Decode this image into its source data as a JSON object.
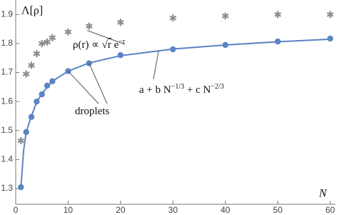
{
  "chart_data": {
    "type": "line",
    "y_label": "Λ[ρ]",
    "x_label": "N",
    "xlim": [
      0,
      61
    ],
    "ylim": [
      1.246,
      1.95
    ],
    "xticks": [
      0,
      10,
      20,
      30,
      40,
      50,
      60
    ],
    "yticks": [
      1.3,
      1.4,
      1.5,
      1.6,
      1.7,
      1.8,
      1.9
    ],
    "series": [
      {
        "color": "#5b84c4",
        "marker": "none",
        "x": [
          1,
          1.5,
          2,
          3,
          4,
          5,
          7,
          10,
          14,
          20,
          30,
          40,
          50,
          60
        ],
        "values": [
          1.305,
          1.43,
          1.495,
          1.55,
          1.598,
          1.628,
          1.67,
          1.705,
          1.733,
          1.758,
          1.781,
          1.795,
          1.806,
          1.815
        ]
      },
      {
        "color": "#5b84c4",
        "marker": "circle",
        "x": [
          1,
          2,
          3,
          4,
          5,
          6,
          7,
          10,
          14,
          20,
          30,
          40,
          50,
          60
        ],
        "values": [
          1.305,
          1.495,
          1.547,
          1.6,
          1.625,
          1.655,
          1.67,
          1.705,
          1.732,
          1.76,
          1.78,
          1.795,
          1.807,
          1.817
        ]
      },
      {
        "color": "#8c8c8c",
        "marker": "asterisk",
        "x": [
          1,
          2,
          3,
          4,
          5,
          6,
          7,
          10,
          14,
          20,
          30,
          40,
          50,
          60
        ],
        "values": [
          1.465,
          1.695,
          1.725,
          1.765,
          1.8,
          1.805,
          1.82,
          1.84,
          1.86,
          1.873,
          1.888,
          1.895,
          1.9,
          1.9
        ]
      }
    ],
    "annotations": [
      {
        "parts": [
          {
            "text": "ρ(r) ∝ √"
          },
          {
            "over": "r"
          },
          {
            "text": " e"
          },
          {
            "sup": "−r"
          }
        ]
      },
      {
        "parts": [
          {
            "text": "a + b N"
          },
          {
            "sup": "−1/3"
          },
          {
            "text": " + c N"
          },
          {
            "sup": "−2/3"
          }
        ]
      },
      {
        "parts": [
          {
            "text": "droplets"
          }
        ]
      }
    ]
  }
}
